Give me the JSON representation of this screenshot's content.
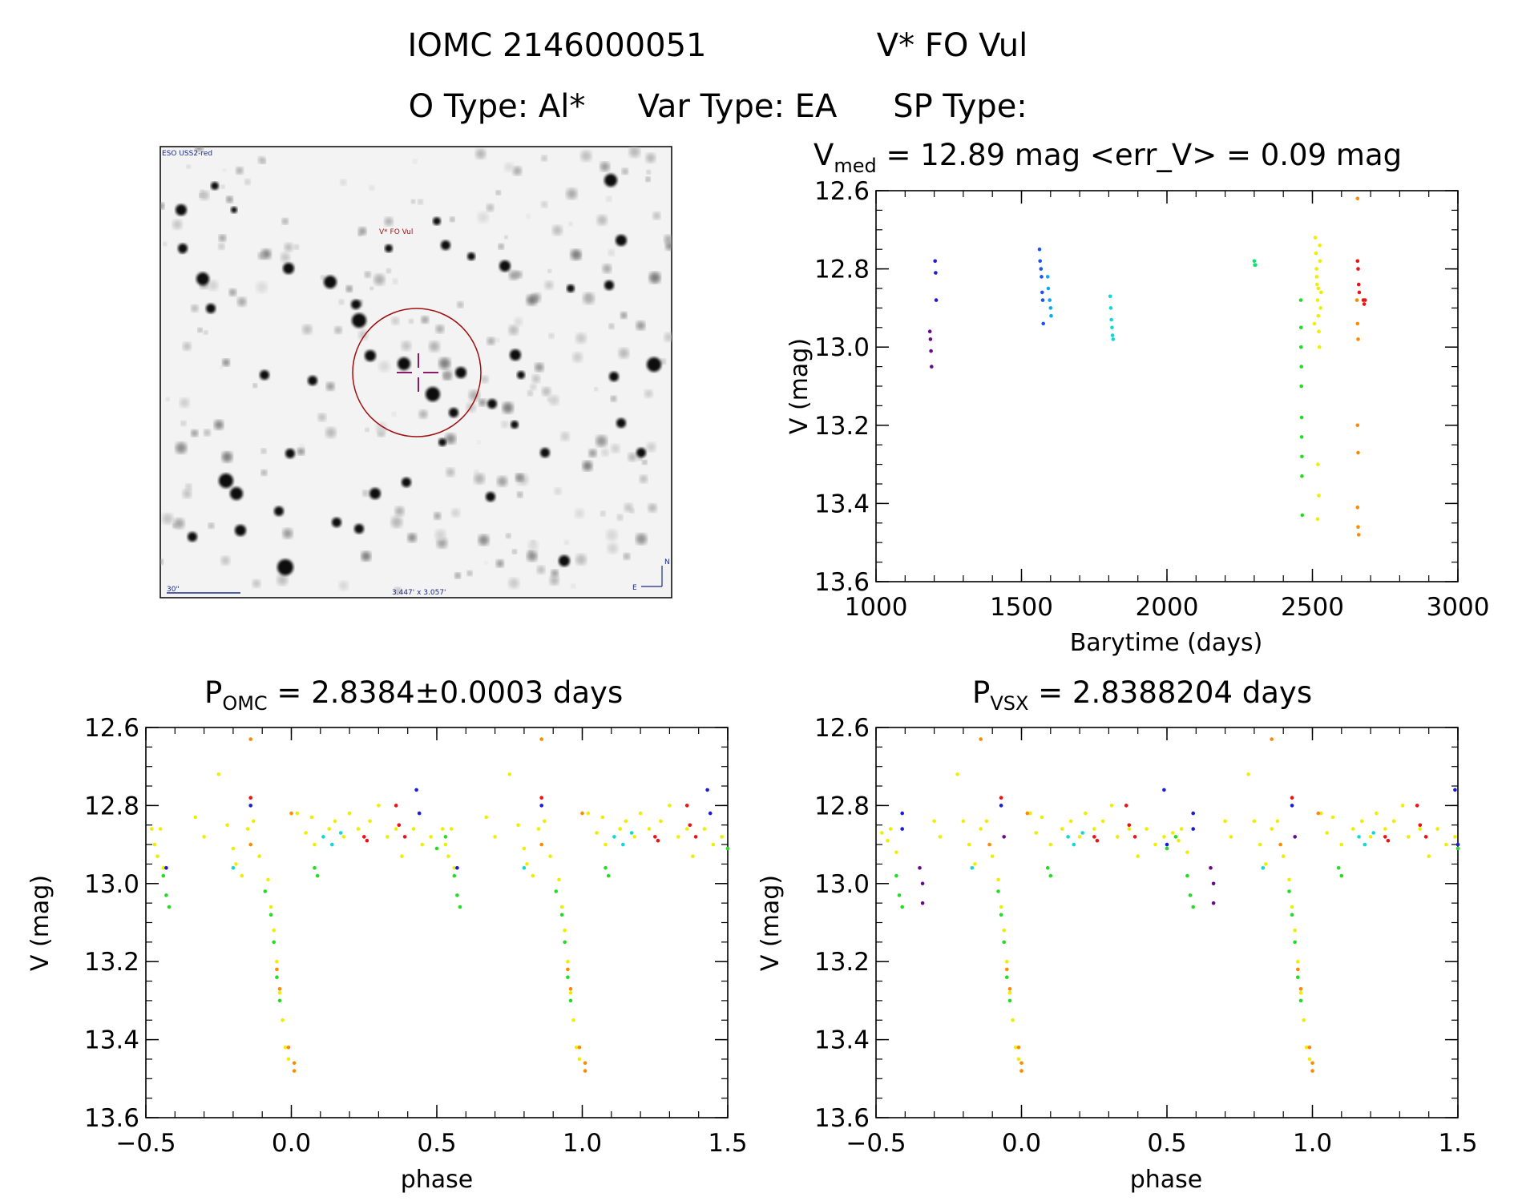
{
  "header": {
    "line1_id": "IOMC 2146000051",
    "line1_name": "V* FO Vul",
    "line2_otype": "O Type: Al*",
    "line2_vartype": "Var Type: EA",
    "line2_sptype": "SP Type:"
  },
  "finder": {
    "survey_label": "ESO USS2-red",
    "target_label": "V* FO Vul",
    "scale_label": "30\"",
    "fov_label": "3.447' x 3.057'",
    "north_label": "N",
    "east_label": "E",
    "colors": {
      "background": "#f3f3f3",
      "circle": "#a01010",
      "cross": "#8a1a6a",
      "label": "#b01010",
      "annot": "#1a2a8a"
    }
  },
  "panels": {
    "lightcurve": {
      "title_main": "V",
      "title_sub": "med",
      "title_rest": " = 12.89 mag <err_V> = 0.09 mag",
      "xlabel": "Barytime (days)",
      "ylabel": "V (mag)"
    },
    "phase_omc": {
      "title_main": "P",
      "title_sub": "OMC",
      "title_rest": " = 2.8384±0.0003 days",
      "xlabel": "phase",
      "ylabel": "V (mag)"
    },
    "phase_vsx": {
      "title_main": "P",
      "title_sub": "VSX",
      "title_rest": " = 2.8388204 days",
      "xlabel": "phase",
      "ylabel": "V (mag)"
    }
  },
  "chart_data": [
    {
      "type": "scatter",
      "id": "lightcurve",
      "xlim": [
        1000,
        3000
      ],
      "ylim": [
        12.6,
        13.6
      ],
      "y_inverted": true,
      "xticks": [
        "1000",
        "1500",
        "2000",
        "2500",
        "3000"
      ],
      "yticks": [
        "12.6",
        "12.8",
        "13.0",
        "13.2",
        "13.4",
        "13.6"
      ],
      "series": [
        {
          "color": "#6a0a8a",
          "points": [
            [
              1185,
              12.96
            ],
            [
              1187,
              12.98
            ],
            [
              1189,
              13.01
            ],
            [
              1191,
              13.05
            ]
          ]
        },
        {
          "color": "#1a1ad8",
          "points": [
            [
              1203,
              12.78
            ],
            [
              1205,
              12.81
            ],
            [
              1207,
              12.88
            ]
          ]
        },
        {
          "color": "#1a55ee",
          "points": [
            [
              1562,
              12.75
            ],
            [
              1564,
              12.78
            ],
            [
              1567,
              12.8
            ],
            [
              1569,
              12.82
            ],
            [
              1571,
              12.86
            ],
            [
              1573,
              12.88
            ],
            [
              1575,
              12.94
            ]
          ]
        },
        {
          "color": "#10a8f0",
          "points": [
            [
              1590,
              12.82
            ],
            [
              1592,
              12.85
            ],
            [
              1597,
              12.88
            ],
            [
              1600,
              12.9
            ],
            [
              1602,
              12.92
            ]
          ]
        },
        {
          "color": "#10d8d8",
          "points": [
            [
              1805,
              12.87
            ],
            [
              1807,
              12.9
            ],
            [
              1809,
              12.93
            ],
            [
              1811,
              12.95
            ],
            [
              1813,
              12.97
            ],
            [
              1815,
              12.98
            ]
          ]
        },
        {
          "color": "#10e070",
          "points": [
            [
              2300,
              12.78
            ],
            [
              2302,
              12.79
            ],
            [
              2304,
              12.79
            ]
          ]
        },
        {
          "color": "#22dd22",
          "points": [
            [
              2460,
              12.88
            ],
            [
              2461,
              12.95
            ],
            [
              2461,
              13.0
            ],
            [
              2462,
              13.05
            ],
            [
              2462,
              13.1
            ],
            [
              2463,
              13.18
            ],
            [
              2463,
              13.23
            ],
            [
              2464,
              13.28
            ],
            [
              2464,
              13.33
            ],
            [
              2465,
              13.43
            ]
          ]
        },
        {
          "color": "#eeee00",
          "points": [
            [
              2510,
              12.72
            ],
            [
              2512,
              12.76
            ],
            [
              2514,
              12.8
            ],
            [
              2516,
              12.84
            ],
            [
              2518,
              12.88
            ],
            [
              2520,
              12.92
            ],
            [
              2522,
              12.96
            ],
            [
              2524,
              13.0
            ],
            [
              2526,
              12.78
            ],
            [
              2520,
              12.85
            ],
            [
              2515,
              12.82
            ],
            [
              2528,
              12.9
            ],
            [
              2530,
              12.86
            ],
            [
              2507,
              12.94
            ],
            [
              2525,
              12.74
            ],
            [
              2519,
              13.3
            ],
            [
              2522,
              13.38
            ],
            [
              2518,
              13.44
            ]
          ]
        },
        {
          "color": "#ff8a00",
          "points": [
            [
              2655,
              12.62
            ],
            [
              2653,
              12.88
            ],
            [
              2655,
              12.94
            ],
            [
              2657,
              12.98
            ],
            [
              2655,
              13.2
            ],
            [
              2657,
              13.27
            ],
            [
              2655,
              13.41
            ],
            [
              2657,
              13.46
            ],
            [
              2659,
              13.48
            ]
          ]
        },
        {
          "color": "#ee1111",
          "points": [
            [
              2655,
              12.78
            ],
            [
              2657,
              12.8
            ],
            [
              2659,
              12.84
            ],
            [
              2661,
              12.86
            ],
            [
              2675,
              12.88
            ],
            [
              2678,
              12.89
            ],
            [
              2681,
              12.88
            ]
          ]
        }
      ]
    },
    {
      "type": "scatter",
      "id": "phase_omc",
      "period": "2.8384",
      "xlim": [
        -0.5,
        1.5
      ],
      "ylim": [
        12.6,
        13.6
      ],
      "y_inverted": true,
      "xticks": [
        "−0.5",
        "0.0",
        "0.5",
        "1.0",
        "1.5"
      ],
      "yticks": [
        "12.6",
        "12.8",
        "13.0",
        "13.2",
        "13.4",
        "13.6"
      ],
      "repeat_shift": 1.0,
      "series": [
        {
          "color": "#eeee00",
          "points": [
            [
              -0.48,
              12.86
            ],
            [
              -0.47,
              12.9
            ],
            [
              -0.46,
              12.93
            ],
            [
              -0.45,
              12.86
            ],
            [
              -0.44,
              12.96
            ],
            [
              -0.33,
              12.83
            ],
            [
              -0.3,
              12.88
            ],
            [
              -0.25,
              12.72
            ],
            [
              -0.22,
              12.85
            ],
            [
              -0.2,
              12.91
            ],
            [
              -0.19,
              12.95
            ],
            [
              -0.17,
              12.98
            ],
            [
              -0.15,
              12.86
            ],
            [
              -0.13,
              12.84
            ],
            [
              -0.11,
              12.93
            ],
            [
              -0.08,
              12.99
            ],
            [
              -0.07,
              13.06
            ],
            [
              -0.06,
              13.12
            ],
            [
              -0.05,
              13.2
            ],
            [
              -0.04,
              13.28
            ],
            [
              -0.03,
              13.35
            ],
            [
              -0.02,
              13.42
            ],
            [
              -0.01,
              13.45
            ],
            [
              0.02,
              12.82
            ],
            [
              0.05,
              12.87
            ],
            [
              0.07,
              12.83
            ],
            [
              0.08,
              12.9
            ],
            [
              0.13,
              12.86
            ],
            [
              0.15,
              12.84
            ],
            [
              0.18,
              12.88
            ],
            [
              0.2,
              12.82
            ],
            [
              0.23,
              12.86
            ],
            [
              0.27,
              12.84
            ],
            [
              0.3,
              12.8
            ],
            [
              0.33,
              12.88
            ],
            [
              0.36,
              12.86
            ],
            [
              0.38,
              12.93
            ],
            [
              0.42,
              12.86
            ],
            [
              0.45,
              12.9
            ],
            [
              0.48,
              12.88
            ]
          ]
        },
        {
          "color": "#22dd22",
          "points": [
            [
              -0.44,
              12.98
            ],
            [
              -0.43,
              13.03
            ],
            [
              -0.42,
              13.06
            ],
            [
              -0.09,
              13.02
            ],
            [
              -0.07,
              13.08
            ],
            [
              -0.06,
              13.15
            ],
            [
              -0.05,
              13.24
            ],
            [
              -0.04,
              13.3
            ],
            [
              0.08,
              12.96
            ],
            [
              0.09,
              12.98
            ],
            [
              0.5,
              12.91
            ],
            [
              0.53,
              12.88
            ]
          ]
        },
        {
          "color": "#10d8d8",
          "points": [
            [
              -0.2,
              12.96
            ],
            [
              0.11,
              12.88
            ],
            [
              0.14,
              12.9
            ],
            [
              0.17,
              12.87
            ]
          ]
        },
        {
          "color": "#1a1ad8",
          "points": [
            [
              -0.43,
              12.96
            ],
            [
              -0.14,
              12.8
            ],
            [
              0.43,
              12.76
            ],
            [
              0.44,
              12.82
            ]
          ]
        },
        {
          "color": "#ff8a00",
          "points": [
            [
              -0.14,
              12.63
            ],
            [
              -0.14,
              12.9
            ],
            [
              0.0,
              12.82
            ],
            [
              -0.05,
              13.22
            ],
            [
              -0.04,
              13.27
            ],
            [
              -0.01,
              13.42
            ],
            [
              0.01,
              13.46
            ],
            [
              0.01,
              13.48
            ]
          ]
        },
        {
          "color": "#ee1111",
          "points": [
            [
              -0.14,
              12.78
            ],
            [
              0.25,
              12.88
            ],
            [
              0.26,
              12.89
            ],
            [
              0.36,
              12.8
            ],
            [
              0.37,
              12.85
            ],
            [
              0.39,
              12.88
            ]
          ]
        }
      ]
    },
    {
      "type": "scatter",
      "id": "phase_vsx",
      "period": "2.8388204",
      "xlim": [
        -0.5,
        1.5
      ],
      "ylim": [
        12.6,
        13.6
      ],
      "y_inverted": true,
      "xticks": [
        "−0.5",
        "0.0",
        "0.5",
        "1.0",
        "1.5"
      ],
      "yticks": [
        "12.6",
        "12.8",
        "13.0",
        "13.2",
        "13.4",
        "13.6"
      ],
      "repeat_shift": 1.0,
      "series": [
        {
          "color": "#eeee00",
          "points": [
            [
              -0.48,
              12.87
            ],
            [
              -0.46,
              12.89
            ],
            [
              -0.45,
              12.86
            ],
            [
              -0.43,
              12.92
            ],
            [
              -0.3,
              12.84
            ],
            [
              -0.28,
              12.88
            ],
            [
              -0.22,
              12.72
            ],
            [
              -0.2,
              12.84
            ],
            [
              -0.18,
              12.9
            ],
            [
              -0.16,
              12.95
            ],
            [
              -0.14,
              12.86
            ],
            [
              -0.12,
              12.84
            ],
            [
              -0.1,
              12.93
            ],
            [
              -0.08,
              12.99
            ],
            [
              -0.07,
              13.06
            ],
            [
              -0.06,
              13.12
            ],
            [
              -0.05,
              13.2
            ],
            [
              -0.04,
              13.28
            ],
            [
              -0.03,
              13.35
            ],
            [
              -0.02,
              13.42
            ],
            [
              -0.01,
              13.45
            ],
            [
              0.03,
              12.82
            ],
            [
              0.05,
              12.87
            ],
            [
              0.07,
              12.83
            ],
            [
              0.1,
              12.9
            ],
            [
              0.14,
              12.86
            ],
            [
              0.17,
              12.84
            ],
            [
              0.2,
              12.88
            ],
            [
              0.22,
              12.82
            ],
            [
              0.25,
              12.86
            ],
            [
              0.28,
              12.84
            ],
            [
              0.31,
              12.8
            ],
            [
              0.33,
              12.88
            ],
            [
              0.37,
              12.86
            ],
            [
              0.4,
              12.93
            ],
            [
              0.43,
              12.86
            ],
            [
              0.46,
              12.9
            ],
            [
              0.49,
              12.88
            ]
          ]
        },
        {
          "color": "#22dd22",
          "points": [
            [
              -0.43,
              12.98
            ],
            [
              -0.42,
              13.03
            ],
            [
              -0.41,
              13.06
            ],
            [
              -0.08,
              13.02
            ],
            [
              -0.07,
              13.08
            ],
            [
              -0.06,
              13.15
            ],
            [
              -0.05,
              13.24
            ],
            [
              -0.04,
              13.3
            ],
            [
              0.09,
              12.96
            ],
            [
              0.1,
              12.98
            ],
            [
              0.5,
              12.91
            ],
            [
              0.53,
              12.88
            ]
          ]
        },
        {
          "color": "#10d8d8",
          "points": [
            [
              -0.17,
              12.96
            ],
            [
              0.16,
              12.88
            ],
            [
              0.18,
              12.9
            ],
            [
              0.21,
              12.87
            ]
          ]
        },
        {
          "color": "#1a1ad8",
          "points": [
            [
              -0.41,
              12.82
            ],
            [
              -0.41,
              12.86
            ],
            [
              -0.07,
              12.8
            ],
            [
              0.49,
              12.76
            ],
            [
              0.5,
              12.9
            ]
          ]
        },
        {
          "color": "#6a0a8a",
          "points": [
            [
              -0.35,
              12.96
            ],
            [
              -0.34,
              13.0
            ],
            [
              -0.34,
              13.05
            ],
            [
              -0.06,
              12.88
            ]
          ]
        },
        {
          "color": "#ff8a00",
          "points": [
            [
              -0.14,
              12.63
            ],
            [
              -0.11,
              12.9
            ],
            [
              0.02,
              12.82
            ],
            [
              -0.05,
              13.22
            ],
            [
              -0.04,
              13.27
            ],
            [
              -0.01,
              13.42
            ],
            [
              0.0,
              13.46
            ],
            [
              0.0,
              13.48
            ]
          ]
        },
        {
          "color": "#ee1111",
          "points": [
            [
              -0.07,
              12.78
            ],
            [
              0.25,
              12.88
            ],
            [
              0.26,
              12.89
            ],
            [
              0.36,
              12.8
            ],
            [
              0.37,
              12.85
            ],
            [
              0.39,
              12.88
            ]
          ]
        }
      ]
    }
  ]
}
